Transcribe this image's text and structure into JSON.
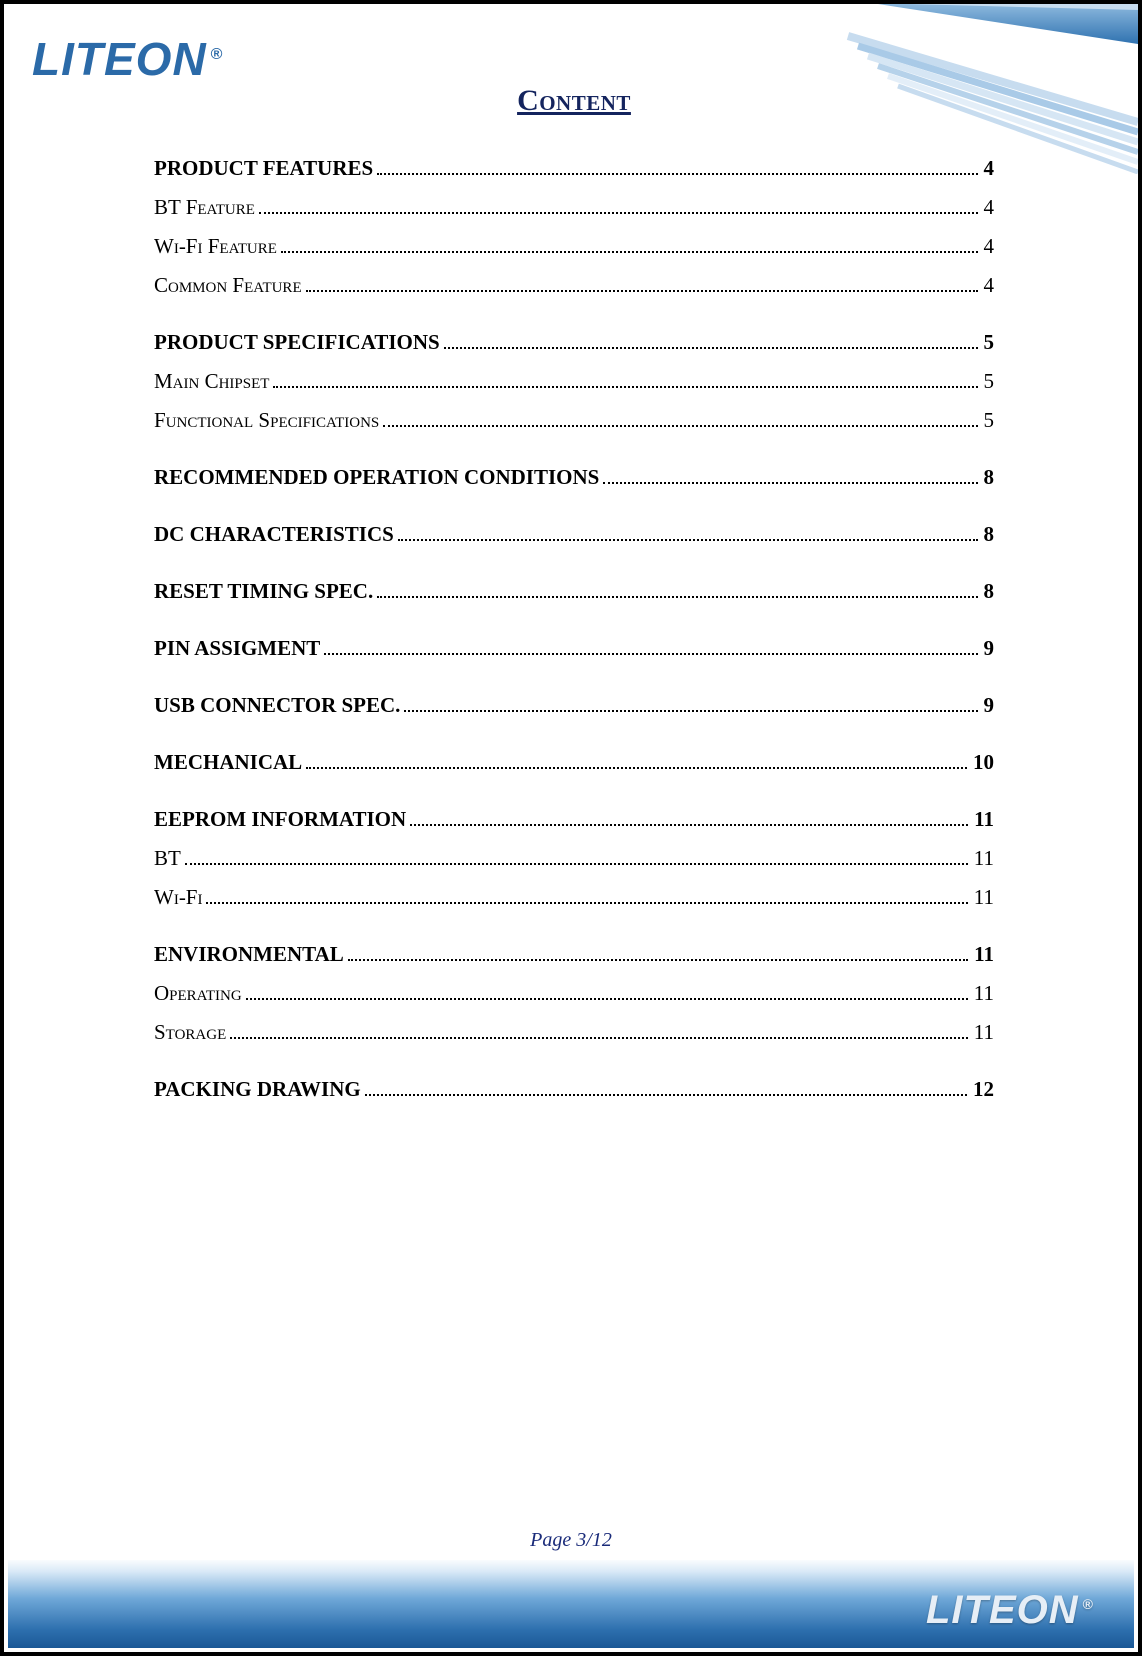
{
  "brand": {
    "name": "LITEON",
    "logo_color": "#2b6aa8",
    "footer_logo_color": "#e6eef6"
  },
  "header": {
    "title": "Content"
  },
  "corner_art": {
    "stripe_colors": [
      "#9fc4e4",
      "#c7dcef",
      "#a9cae7",
      "#d6e6f4",
      "#b6d2ea",
      "#e3eef8"
    ],
    "band_color_dark": "#2f72b0",
    "band_color_light": "#8db9de"
  },
  "footer": {
    "page_label": "Page 3/12",
    "gradient_top": "#d9e9f7",
    "gradient_mid": "#6fa8d8",
    "gradient_bottom": "#1a5896"
  },
  "toc": [
    {
      "type": "section",
      "label": "PRODUCT FEATURES",
      "page": "4"
    },
    {
      "type": "sub",
      "label": "BT Feature",
      "page": "4"
    },
    {
      "type": "sub",
      "label": "Wi-Fi Feature",
      "page": "4"
    },
    {
      "type": "sub",
      "label": "Common Feature",
      "page": "4"
    },
    {
      "type": "section",
      "label": "PRODUCT SPECIFICATIONS",
      "page": "5"
    },
    {
      "type": "sub",
      "label": "Main Chipset",
      "page": "5"
    },
    {
      "type": "sub",
      "label": "Functional Specifications",
      "page": "5"
    },
    {
      "type": "section",
      "label": "RECOMMENDED OPERATION CONDITIONS",
      "page": "8"
    },
    {
      "type": "section",
      "label": "DC CHARACTERISTICS",
      "page": "8"
    },
    {
      "type": "section",
      "label": "RESET TIMING SPEC.",
      "page": "8"
    },
    {
      "type": "section",
      "label": "PIN ASSIGMENT",
      "page": "9"
    },
    {
      "type": "section",
      "label": "USB CONNECTOR SPEC.",
      "page": "9"
    },
    {
      "type": "section",
      "label": "MECHANICAL",
      "page": "10"
    },
    {
      "type": "section",
      "label": "EEPROM INFORMATION",
      "page": "11"
    },
    {
      "type": "sub",
      "label": "BT",
      "page": "11"
    },
    {
      "type": "sub",
      "label": "Wi-Fi",
      "page": "11"
    },
    {
      "type": "section",
      "label": "ENVIRONMENTAL",
      "page": "11"
    },
    {
      "type": "sub",
      "label": "Operating",
      "page": "11"
    },
    {
      "type": "sub",
      "label": "Storage",
      "page": "11"
    },
    {
      "type": "section",
      "label": "PACKING DRAWING",
      "page": "12"
    }
  ]
}
